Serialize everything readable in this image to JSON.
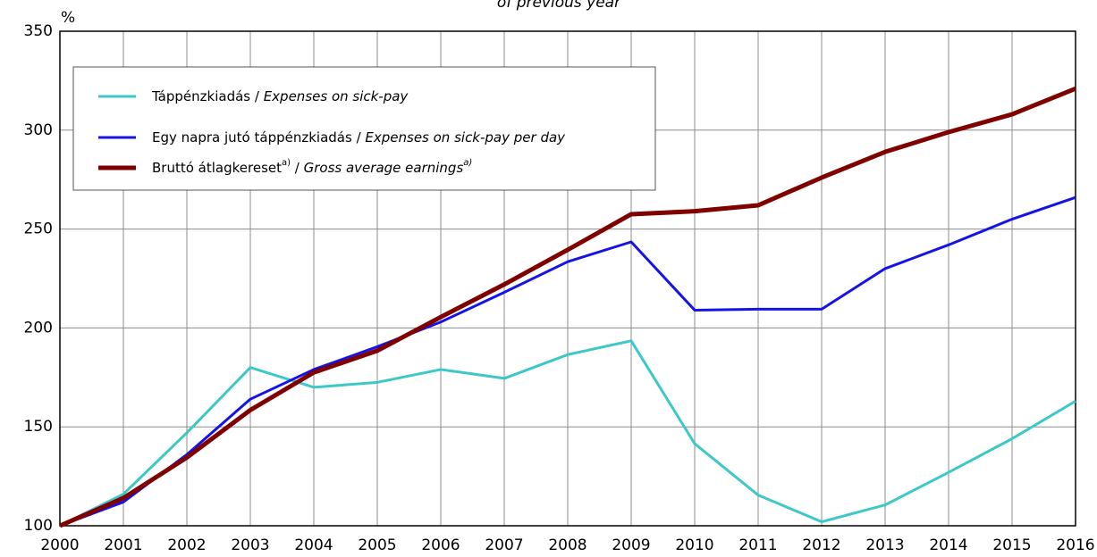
{
  "chart_data": {
    "type": "line",
    "title": "of previous year",
    "ylabel": "%",
    "x": [
      2000,
      2001,
      2002,
      2003,
      2004,
      2005,
      2006,
      2007,
      2008,
      2009,
      2010,
      2011,
      2012,
      2013,
      2014,
      2015,
      2016
    ],
    "xlim": [
      2000,
      2016
    ],
    "xticks": [
      2000,
      2001,
      2002,
      2003,
      2004,
      2005,
      2006,
      2007,
      2008,
      2009,
      2010,
      2011,
      2012,
      2013,
      2014,
      2015,
      2016
    ],
    "ylim": [
      100,
      350
    ],
    "yticks": [
      100,
      150,
      200,
      250,
      300,
      350
    ],
    "grid": true,
    "legend": "upper left",
    "series": [
      {
        "name": "Táppénzkiadás / Expenses on sick-pay",
        "color": "#3cc8c8",
        "width": 3,
        "values": [
          100,
          116,
          147,
          180,
          170,
          172.5,
          179,
          174.5,
          186.5,
          193.5,
          141.5,
          115.5,
          102,
          110.5,
          127,
          144,
          163
        ]
      },
      {
        "name": "Egy napra jutó táppénzkiadás / Expenses on sick-pay per day",
        "color": "#1414e6",
        "width": 3,
        "values": [
          100,
          112,
          136,
          164,
          179,
          190.5,
          203,
          218,
          233.5,
          243.5,
          209,
          209.5,
          209.5,
          230,
          242,
          255,
          266
        ]
      },
      {
        "name": "Bruttó átlagkereset / Gross average earnings",
        "note": "a)",
        "color": "#800000",
        "width": 5,
        "values": [
          100,
          114,
          134.5,
          158.5,
          177.5,
          188.5,
          205.5,
          222,
          239.5,
          257.5,
          259,
          262,
          276,
          289,
          299,
          308,
          321
        ]
      }
    ]
  }
}
